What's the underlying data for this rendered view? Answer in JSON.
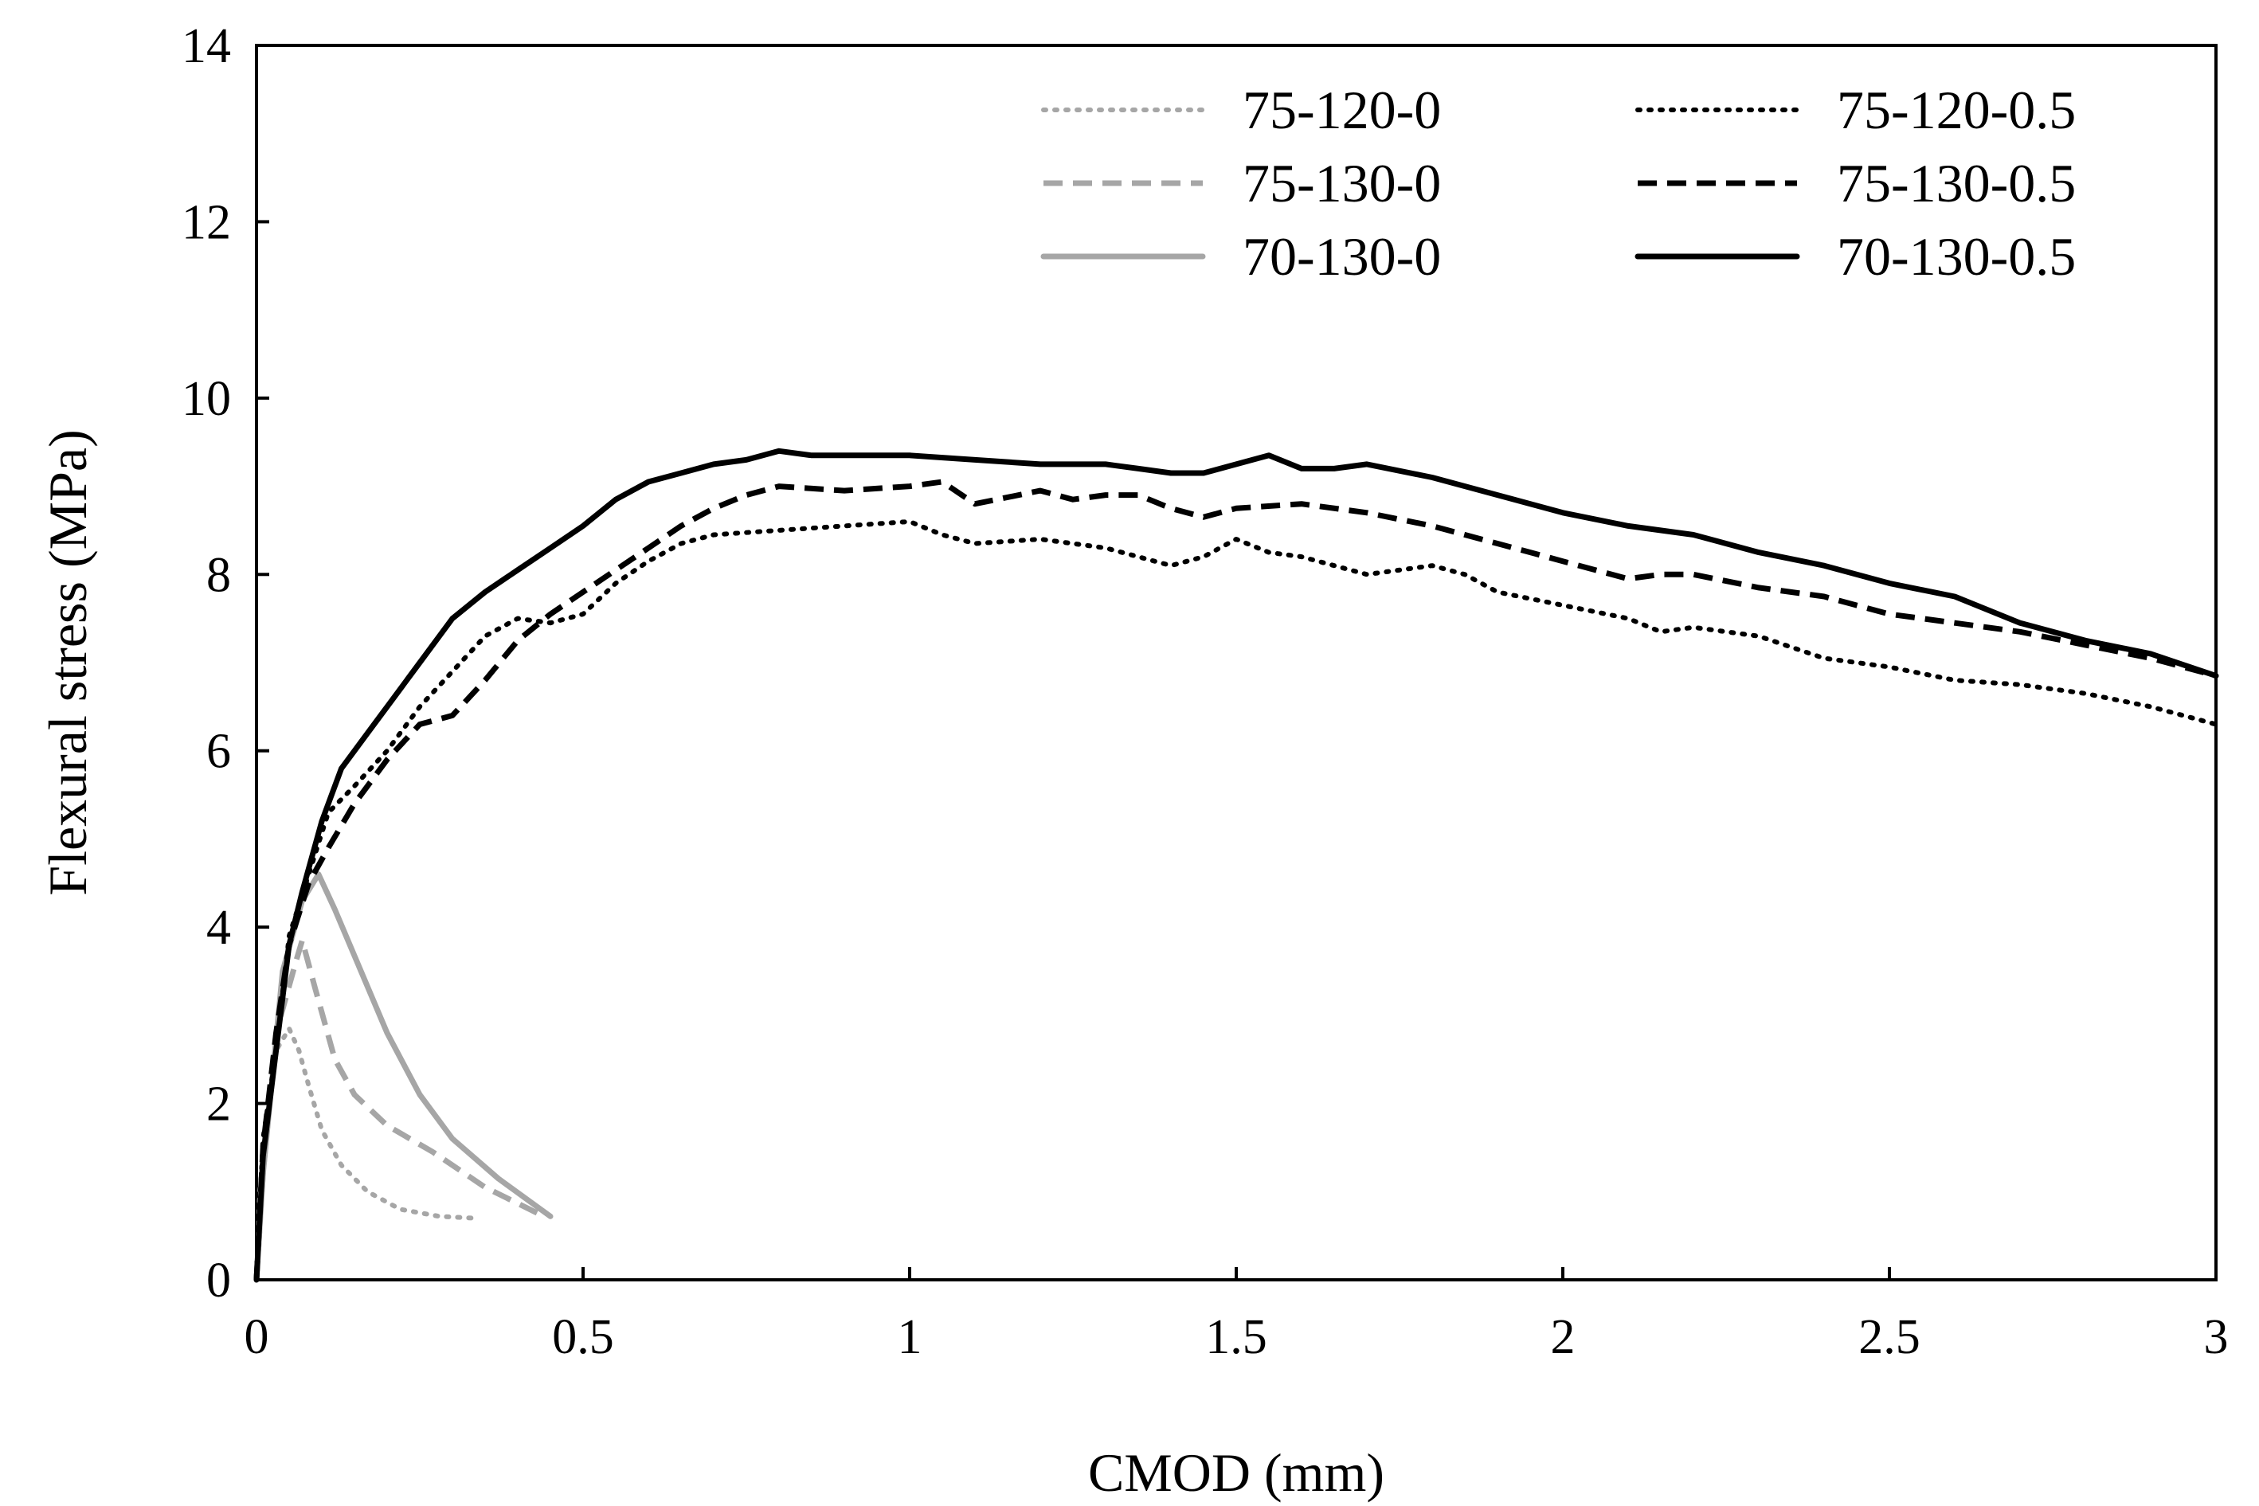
{
  "chart_data": {
    "type": "line",
    "title": "",
    "xlabel": "CMOD (mm)",
    "ylabel": "Flexural stress (MPa)",
    "xlim": [
      0,
      3
    ],
    "ylim": [
      0,
      14
    ],
    "xticks": [
      0,
      0.5,
      1,
      1.5,
      2,
      2.5,
      3
    ],
    "xtick_labels": [
      "0",
      "0.5",
      "1",
      "1.5",
      "2",
      "2.5",
      "3"
    ],
    "yticks": [
      0,
      2,
      4,
      6,
      8,
      10,
      12,
      14
    ],
    "ytick_labels": [
      "0",
      "2",
      "4",
      "6",
      "8",
      "10",
      "12",
      "14"
    ],
    "grid": false,
    "legend_position": "top-right",
    "series": [
      {
        "name": "75-120-0",
        "color": "#a6a6a6",
        "style": "dotted",
        "points": [
          [
            0,
            0
          ],
          [
            0.005,
            1.0
          ],
          [
            0.015,
            1.8
          ],
          [
            0.03,
            2.6
          ],
          [
            0.05,
            2.85
          ],
          [
            0.065,
            2.6
          ],
          [
            0.08,
            2.2
          ],
          [
            0.1,
            1.7
          ],
          [
            0.13,
            1.3
          ],
          [
            0.17,
            1.0
          ],
          [
            0.22,
            0.8
          ],
          [
            0.28,
            0.72
          ],
          [
            0.33,
            0.7
          ]
        ]
      },
      {
        "name": "75-130-0",
        "color": "#a6a6a6",
        "style": "dashed",
        "points": [
          [
            0,
            0
          ],
          [
            0.01,
            1.2
          ],
          [
            0.03,
            2.8
          ],
          [
            0.06,
            3.6
          ],
          [
            0.07,
            3.85
          ],
          [
            0.09,
            3.3
          ],
          [
            0.12,
            2.5
          ],
          [
            0.15,
            2.1
          ],
          [
            0.2,
            1.75
          ],
          [
            0.27,
            1.45
          ],
          [
            0.35,
            1.05
          ],
          [
            0.44,
            0.72
          ]
        ]
      },
      {
        "name": "70-130-0",
        "color": "#a6a6a6",
        "style": "solid",
        "points": [
          [
            0,
            0
          ],
          [
            0.01,
            1.2
          ],
          [
            0.04,
            3.5
          ],
          [
            0.07,
            4.3
          ],
          [
            0.095,
            4.6
          ],
          [
            0.12,
            4.2
          ],
          [
            0.16,
            3.5
          ],
          [
            0.2,
            2.8
          ],
          [
            0.25,
            2.1
          ],
          [
            0.3,
            1.6
          ],
          [
            0.37,
            1.15
          ],
          [
            0.45,
            0.72
          ]
        ]
      },
      {
        "name": "75-120-0.5",
        "color": "#000000",
        "style": "dotted",
        "points": [
          [
            0,
            0
          ],
          [
            0.01,
            1.6
          ],
          [
            0.03,
            2.6
          ],
          [
            0.05,
            3.9
          ],
          [
            0.08,
            4.6
          ],
          [
            0.11,
            5.3
          ],
          [
            0.15,
            5.6
          ],
          [
            0.2,
            6.0
          ],
          [
            0.25,
            6.5
          ],
          [
            0.3,
            6.9
          ],
          [
            0.35,
            7.3
          ],
          [
            0.4,
            7.5
          ],
          [
            0.45,
            7.45
          ],
          [
            0.5,
            7.55
          ],
          [
            0.55,
            7.9
          ],
          [
            0.6,
            8.15
          ],
          [
            0.65,
            8.35
          ],
          [
            0.7,
            8.45
          ],
          [
            0.8,
            8.5
          ],
          [
            0.9,
            8.55
          ],
          [
            1.0,
            8.6
          ],
          [
            1.05,
            8.45
          ],
          [
            1.1,
            8.35
          ],
          [
            1.2,
            8.4
          ],
          [
            1.25,
            8.35
          ],
          [
            1.3,
            8.3
          ],
          [
            1.35,
            8.2
          ],
          [
            1.4,
            8.1
          ],
          [
            1.45,
            8.2
          ],
          [
            1.5,
            8.4
          ],
          [
            1.55,
            8.25
          ],
          [
            1.6,
            8.2
          ],
          [
            1.65,
            8.1
          ],
          [
            1.7,
            8.0
          ],
          [
            1.8,
            8.1
          ],
          [
            1.85,
            8.0
          ],
          [
            1.9,
            7.8
          ],
          [
            2.0,
            7.65
          ],
          [
            2.1,
            7.5
          ],
          [
            2.15,
            7.35
          ],
          [
            2.2,
            7.4
          ],
          [
            2.3,
            7.3
          ],
          [
            2.4,
            7.05
          ],
          [
            2.5,
            6.95
          ],
          [
            2.6,
            6.8
          ],
          [
            2.7,
            6.75
          ],
          [
            2.8,
            6.65
          ],
          [
            2.9,
            6.5
          ],
          [
            3.0,
            6.3
          ]
        ]
      },
      {
        "name": "75-130-0.5",
        "color": "#000000",
        "style": "dashed",
        "points": [
          [
            0,
            0
          ],
          [
            0.01,
            1.5
          ],
          [
            0.03,
            2.8
          ],
          [
            0.05,
            3.8
          ],
          [
            0.08,
            4.5
          ],
          [
            0.11,
            4.9
          ],
          [
            0.15,
            5.4
          ],
          [
            0.2,
            5.9
          ],
          [
            0.25,
            6.3
          ],
          [
            0.3,
            6.4
          ],
          [
            0.35,
            6.8
          ],
          [
            0.4,
            7.25
          ],
          [
            0.45,
            7.55
          ],
          [
            0.5,
            7.8
          ],
          [
            0.55,
            8.05
          ],
          [
            0.6,
            8.3
          ],
          [
            0.65,
            8.55
          ],
          [
            0.7,
            8.75
          ],
          [
            0.75,
            8.9
          ],
          [
            0.8,
            9.0
          ],
          [
            0.9,
            8.95
          ],
          [
            1.0,
            9.0
          ],
          [
            1.05,
            9.05
          ],
          [
            1.1,
            8.8
          ],
          [
            1.2,
            8.95
          ],
          [
            1.25,
            8.85
          ],
          [
            1.3,
            8.9
          ],
          [
            1.35,
            8.9
          ],
          [
            1.4,
            8.75
          ],
          [
            1.45,
            8.65
          ],
          [
            1.5,
            8.75
          ],
          [
            1.6,
            8.8
          ],
          [
            1.7,
            8.7
          ],
          [
            1.8,
            8.55
          ],
          [
            1.9,
            8.35
          ],
          [
            2.0,
            8.15
          ],
          [
            2.1,
            7.95
          ],
          [
            2.15,
            8.0
          ],
          [
            2.2,
            8.0
          ],
          [
            2.3,
            7.85
          ],
          [
            2.4,
            7.75
          ],
          [
            2.5,
            7.55
          ],
          [
            2.6,
            7.45
          ],
          [
            2.7,
            7.35
          ],
          [
            2.8,
            7.2
          ],
          [
            2.9,
            7.05
          ],
          [
            3.0,
            6.85
          ]
        ]
      },
      {
        "name": "70-130-0.5",
        "color": "#000000",
        "style": "solid",
        "points": [
          [
            0,
            0
          ],
          [
            0.01,
            1.4
          ],
          [
            0.03,
            2.6
          ],
          [
            0.05,
            3.8
          ],
          [
            0.07,
            4.4
          ],
          [
            0.1,
            5.2
          ],
          [
            0.13,
            5.8
          ],
          [
            0.17,
            6.2
          ],
          [
            0.2,
            6.5
          ],
          [
            0.25,
            7.0
          ],
          [
            0.3,
            7.5
          ],
          [
            0.35,
            7.8
          ],
          [
            0.4,
            8.05
          ],
          [
            0.45,
            8.3
          ],
          [
            0.5,
            8.55
          ],
          [
            0.55,
            8.85
          ],
          [
            0.6,
            9.05
          ],
          [
            0.65,
            9.15
          ],
          [
            0.7,
            9.25
          ],
          [
            0.75,
            9.3
          ],
          [
            0.8,
            9.4
          ],
          [
            0.85,
            9.35
          ],
          [
            0.9,
            9.35
          ],
          [
            1.0,
            9.35
          ],
          [
            1.1,
            9.3
          ],
          [
            1.2,
            9.25
          ],
          [
            1.3,
            9.25
          ],
          [
            1.35,
            9.2
          ],
          [
            1.4,
            9.15
          ],
          [
            1.45,
            9.15
          ],
          [
            1.5,
            9.25
          ],
          [
            1.55,
            9.35
          ],
          [
            1.6,
            9.2
          ],
          [
            1.65,
            9.2
          ],
          [
            1.7,
            9.25
          ],
          [
            1.8,
            9.1
          ],
          [
            1.9,
            8.9
          ],
          [
            2.0,
            8.7
          ],
          [
            2.1,
            8.55
          ],
          [
            2.2,
            8.45
          ],
          [
            2.3,
            8.25
          ],
          [
            2.4,
            8.1
          ],
          [
            2.5,
            7.9
          ],
          [
            2.6,
            7.75
          ],
          [
            2.7,
            7.45
          ],
          [
            2.8,
            7.25
          ],
          [
            2.9,
            7.1
          ],
          [
            3.0,
            6.85
          ]
        ]
      }
    ]
  }
}
